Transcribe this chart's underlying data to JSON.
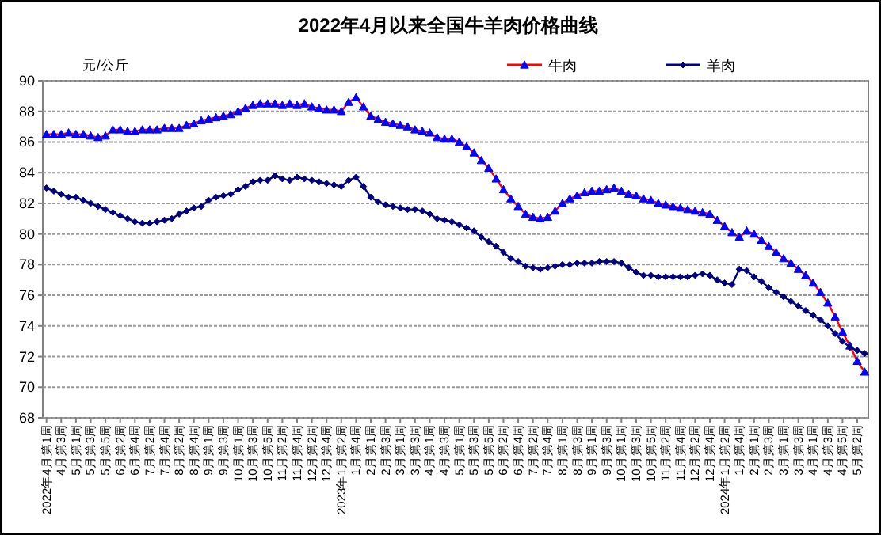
{
  "chart_data": {
    "type": "line",
    "title": "2022年4月以来全国牛羊肉价格曲线",
    "ylabel": "元/公斤",
    "categories": [
      "2022年4月第1周",
      null,
      "4月第3周",
      null,
      "5月第1周",
      null,
      "5月第3周",
      null,
      "5月第5周",
      null,
      "6月第2周",
      null,
      "6月第4周",
      null,
      "7月第2周",
      null,
      "7月第4周",
      null,
      "8月第2周",
      null,
      "8月第4周",
      null,
      "9月第1周",
      null,
      "9月第3周",
      null,
      "10月第1周",
      null,
      "10月第3周",
      null,
      "10月第5周",
      null,
      "11月第2周",
      null,
      "11月第4周",
      null,
      "12月第2周",
      null,
      "12月第4周",
      null,
      "2023年1月第2周",
      null,
      "1月第4周",
      null,
      "2月第1周",
      null,
      "2月第3周",
      null,
      "3月第1周",
      null,
      "3月第3周",
      null,
      "4月第1周",
      null,
      "4月第3周",
      null,
      "5月第1周",
      null,
      "5月第3周",
      null,
      "5月第5周",
      null,
      "6月第2周",
      null,
      "6月第4周",
      null,
      "7月第2周",
      null,
      "7月第4周",
      null,
      "8月第1周",
      null,
      "8月第3周",
      null,
      "9月第1周",
      null,
      "9月第3周",
      null,
      "10月第1周",
      null,
      "10月第3周",
      null,
      "10月第5周",
      null,
      "11月第2周",
      null,
      "11月第4周",
      null,
      "12月第2周",
      null,
      "12月第4周",
      null,
      "2024年1月第2周",
      null,
      "1月第4周",
      null,
      "2月第1周",
      null,
      "2月第3周",
      null,
      "3月第1周",
      null,
      "3月第3周",
      null,
      "4月第1周",
      null,
      "4月第3周",
      null,
      "4月第5周",
      null,
      "5月第2周",
      null
    ],
    "series": [
      {
        "name": "牛肉",
        "color": "#0000ff",
        "marker": "triangle",
        "values": [
          86.5,
          86.5,
          86.5,
          86.6,
          86.5,
          86.5,
          86.4,
          86.3,
          86.4,
          86.8,
          86.8,
          86.7,
          86.7,
          86.8,
          86.8,
          86.8,
          86.9,
          86.9,
          86.9,
          87.1,
          87.2,
          87.4,
          87.5,
          87.6,
          87.7,
          87.8,
          88.0,
          88.2,
          88.4,
          88.5,
          88.5,
          88.5,
          88.4,
          88.5,
          88.4,
          88.5,
          88.3,
          88.2,
          88.1,
          88.1,
          88.0,
          88.6,
          88.9,
          88.3,
          87.7,
          87.5,
          87.3,
          87.2,
          87.1,
          87.0,
          86.8,
          86.7,
          86.6,
          86.3,
          86.2,
          86.2,
          86.0,
          85.7,
          85.3,
          84.8,
          84.3,
          83.6,
          82.9,
          82.3,
          81.8,
          81.3,
          81.1,
          81.0,
          81.1,
          81.5,
          82.0,
          82.3,
          82.5,
          82.7,
          82.8,
          82.8,
          82.9,
          83.0,
          82.8,
          82.6,
          82.5,
          82.3,
          82.2,
          82.0,
          81.9,
          81.8,
          81.7,
          81.6,
          81.5,
          81.4,
          81.3,
          80.9,
          80.5,
          80.1,
          79.8,
          80.2,
          80.0,
          79.6,
          79.2,
          78.8,
          78.4,
          78.1,
          77.7,
          77.3,
          76.8,
          76.2,
          75.5,
          74.6,
          73.6,
          72.7,
          71.7,
          71.0
        ]
      },
      {
        "name": "羊肉",
        "color": "#000080",
        "marker": "diamond",
        "values": [
          83.0,
          82.8,
          82.6,
          82.4,
          82.4,
          82.2,
          82.0,
          81.8,
          81.6,
          81.4,
          81.2,
          81.0,
          80.8,
          80.7,
          80.7,
          80.8,
          80.9,
          81.0,
          81.3,
          81.5,
          81.7,
          81.8,
          82.2,
          82.4,
          82.5,
          82.6,
          82.9,
          83.1,
          83.4,
          83.5,
          83.5,
          83.8,
          83.6,
          83.5,
          83.7,
          83.6,
          83.5,
          83.4,
          83.3,
          83.2,
          83.1,
          83.5,
          83.7,
          83.1,
          82.4,
          82.1,
          81.9,
          81.8,
          81.7,
          81.6,
          81.6,
          81.5,
          81.3,
          81.0,
          80.9,
          80.8,
          80.6,
          80.4,
          80.2,
          79.8,
          79.5,
          79.2,
          78.8,
          78.4,
          78.2,
          77.9,
          77.8,
          77.7,
          77.8,
          77.9,
          78.0,
          78.0,
          78.1,
          78.1,
          78.1,
          78.2,
          78.2,
          78.2,
          78.1,
          77.8,
          77.5,
          77.3,
          77.3,
          77.2,
          77.2,
          77.2,
          77.2,
          77.2,
          77.3,
          77.4,
          77.3,
          77.0,
          76.8,
          76.7,
          77.7,
          77.6,
          77.2,
          76.9,
          76.5,
          76.2,
          75.9,
          75.6,
          75.3,
          75.0,
          74.7,
          74.4,
          74.0,
          73.5,
          73.0,
          72.6,
          72.4,
          72.2
        ]
      }
    ],
    "ylim": [
      68,
      90
    ],
    "yticks": [
      68,
      70,
      72,
      74,
      76,
      78,
      80,
      82,
      84,
      86,
      88,
      90
    ],
    "grid": "y",
    "legend": "top right"
  }
}
